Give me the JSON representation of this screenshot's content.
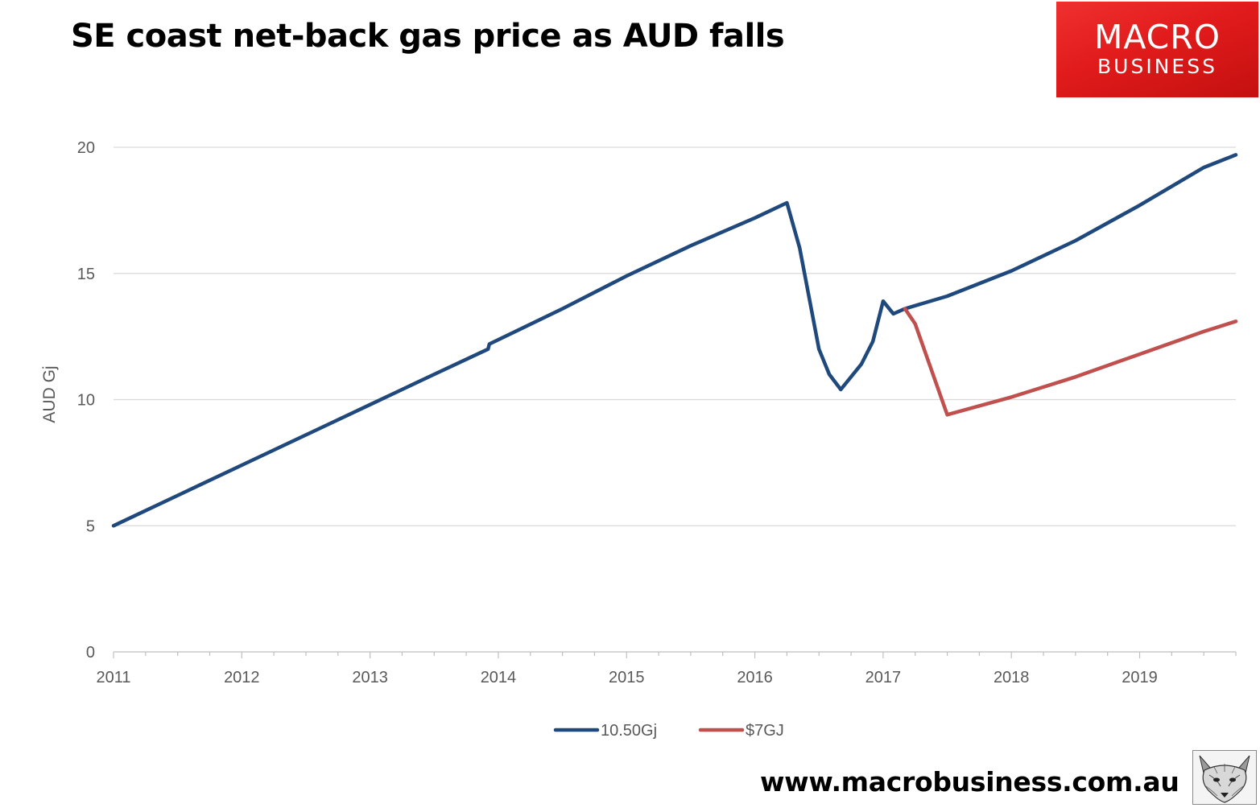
{
  "title": "SE coast net-back gas price as AUD falls",
  "brand": {
    "line1": "MACRO",
    "line2": "BUSINESS",
    "color": "#e11b1b"
  },
  "footer_url": "www.macrobusiness.com.au",
  "fox_icon": "fox-head-icon",
  "chart_data": {
    "type": "line",
    "ylabel": "AUD Gj",
    "xlabel": "",
    "xlim": [
      2011,
      2019.75
    ],
    "ylim": [
      0,
      20
    ],
    "yticks": [
      0,
      5,
      10,
      15,
      20
    ],
    "ytick_labels": [
      "0",
      "5",
      "10",
      "15",
      "20"
    ],
    "xticks": [
      2011,
      2012,
      2013,
      2014,
      2015,
      2016,
      2017,
      2018,
      2019
    ],
    "xtick_labels": [
      "2011",
      "2012",
      "2013",
      "2014",
      "2015",
      "2016",
      "2017",
      "2018",
      "2019"
    ],
    "grid": "horizontal",
    "legend": "bottom-center",
    "series": [
      {
        "name": "10.50Gj",
        "color": "#1f497d",
        "x": [
          2011,
          2011.5,
          2012,
          2012.5,
          2013,
          2013.5,
          2013.92,
          2013.93,
          2014.5,
          2015,
          2015.5,
          2016,
          2016.25,
          2016.35,
          2016.5,
          2016.58,
          2016.67,
          2016.83,
          2016.92,
          2017,
          2017.08,
          2017.17,
          2017.5,
          2018,
          2018.5,
          2019,
          2019.5,
          2019.75
        ],
        "y": [
          5.0,
          6.2,
          7.4,
          8.6,
          9.8,
          11.0,
          12.0,
          12.2,
          13.6,
          14.9,
          16.1,
          17.2,
          17.8,
          16.0,
          12.0,
          11.0,
          10.4,
          11.4,
          12.3,
          13.9,
          13.4,
          13.6,
          14.1,
          15.1,
          16.3,
          17.7,
          19.2,
          19.7
        ]
      },
      {
        "name": "$7GJ",
        "color": "#c0504d",
        "x": [
          2017.17,
          2017.25,
          2017.5,
          2018,
          2018.5,
          2019,
          2019.5,
          2019.75
        ],
        "y": [
          13.6,
          13.0,
          9.4,
          10.1,
          10.9,
          11.8,
          12.7,
          13.1
        ]
      }
    ]
  }
}
